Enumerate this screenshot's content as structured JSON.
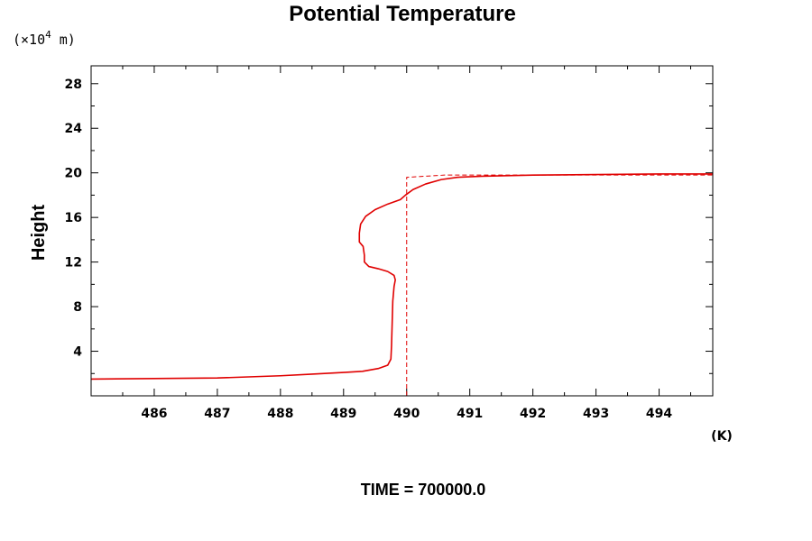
{
  "chart_data": {
    "type": "line",
    "title": "Potential Temperature",
    "ylabel": "Height",
    "y_unit_prefix": "(×10",
    "y_unit_exponent": "4",
    "y_unit_suffix": " m)",
    "x_unit": "(K)",
    "footer": "TIME = 700000.0",
    "xlim": [
      485.0,
      494.85
    ],
    "ylim": [
      0.0,
      29.6
    ],
    "x_ticks": [
      486,
      487,
      488,
      489,
      490,
      491,
      492,
      493,
      494
    ],
    "y_ticks": [
      4,
      8,
      12,
      16,
      20,
      24,
      28
    ],
    "grid": false,
    "series": [
      {
        "style": "solid",
        "color": "#e00000",
        "points": [
          [
            485.0,
            1.5
          ],
          [
            486.0,
            1.55
          ],
          [
            487.0,
            1.6
          ],
          [
            488.0,
            1.8
          ],
          [
            488.5,
            1.95
          ],
          [
            489.0,
            2.1
          ],
          [
            489.3,
            2.2
          ],
          [
            489.55,
            2.45
          ],
          [
            489.7,
            2.75
          ],
          [
            489.75,
            3.3
          ],
          [
            489.76,
            4.5
          ],
          [
            489.77,
            6.5
          ],
          [
            489.78,
            8.5
          ],
          [
            489.8,
            9.8
          ],
          [
            489.82,
            10.4
          ],
          [
            489.8,
            10.8
          ],
          [
            489.7,
            11.15
          ],
          [
            489.55,
            11.4
          ],
          [
            489.4,
            11.6
          ],
          [
            489.33,
            12.0
          ],
          [
            489.33,
            12.6
          ],
          [
            489.31,
            13.4
          ],
          [
            489.25,
            13.8
          ],
          [
            489.25,
            14.6
          ],
          [
            489.27,
            15.4
          ],
          [
            489.35,
            16.1
          ],
          [
            489.5,
            16.7
          ],
          [
            489.7,
            17.2
          ],
          [
            489.9,
            17.6
          ],
          [
            489.98,
            18.0
          ],
          [
            490.1,
            18.5
          ],
          [
            490.3,
            19.0
          ],
          [
            490.55,
            19.4
          ],
          [
            490.8,
            19.6
          ],
          [
            491.2,
            19.7
          ],
          [
            492.0,
            19.8
          ],
          [
            493.0,
            19.85
          ],
          [
            494.0,
            19.9
          ],
          [
            494.85,
            19.9
          ]
        ]
      },
      {
        "style": "dashed",
        "color": "#e00000",
        "points": [
          [
            490.0,
            0.0
          ],
          [
            490.0,
            19.6
          ],
          [
            490.6,
            19.8
          ],
          [
            494.85,
            19.8
          ]
        ]
      }
    ]
  }
}
